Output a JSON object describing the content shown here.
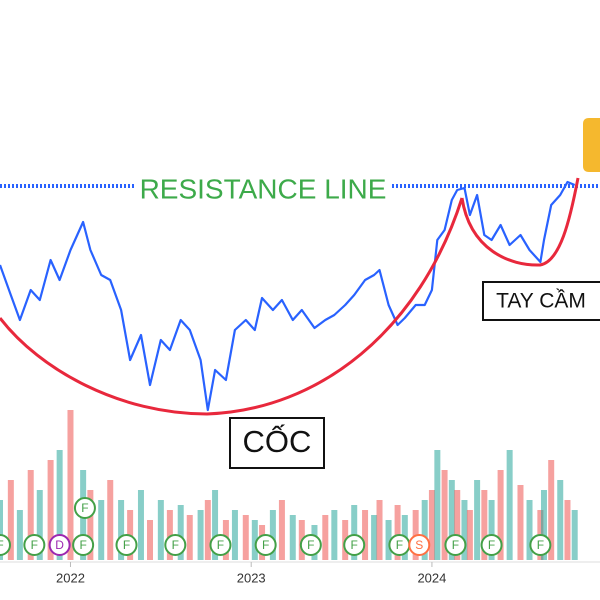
{
  "chart_data": {
    "type": "line",
    "x": [
      2021.61,
      2021.67,
      2021.72,
      2021.78,
      2021.83,
      2021.89,
      2021.94,
      2022.0,
      2022.07,
      2022.11,
      2022.17,
      2022.22,
      2022.28,
      2022.33,
      2022.39,
      2022.44,
      2022.5,
      2022.55,
      2022.61,
      2022.66,
      2022.72,
      2022.76,
      2022.8,
      2022.86,
      2022.91,
      2022.97,
      2023.02,
      2023.06,
      2023.12,
      2023.17,
      2023.23,
      2023.28,
      2023.35,
      2023.41,
      2023.46,
      2023.52,
      2023.57,
      2023.63,
      2023.68,
      2023.71,
      2023.76,
      2023.81,
      2023.85,
      2023.91,
      2023.96,
      2024.0,
      2024.03,
      2024.07,
      2024.11,
      2024.14,
      2024.18,
      2024.21,
      2024.25,
      2024.29,
      2024.33,
      2024.38,
      2024.43,
      2024.49,
      2024.54,
      2024.6,
      2024.62,
      2024.66,
      2024.71,
      2024.75,
      2024.79
    ],
    "series": [
      {
        "color": "#2962ff",
        "values": [
          335,
          305,
          280,
          310,
          300,
          340,
          320,
          350,
          378,
          350,
          325,
          320,
          290,
          240,
          265,
          215,
          260,
          250,
          280,
          270,
          240,
          190,
          230,
          220,
          270,
          280,
          270,
          302,
          290,
          300,
          280,
          290,
          272,
          280,
          285,
          295,
          305,
          320,
          325,
          330,
          295,
          275,
          282,
          295,
          295,
          310,
          360,
          370,
          400,
          410,
          412,
          385,
          405,
          365,
          360,
          375,
          355,
          365,
          350,
          338,
          360,
          395,
          405,
          418,
          415
        ]
      }
    ],
    "xlim": [
      2021.61,
      2024.93
    ],
    "ylim": [
      0,
      600
    ],
    "xticks": [
      2022,
      2023,
      2024
    ],
    "volume": {
      "ylim": [
        0,
        200
      ],
      "colors": [
        "#26a69a",
        "#ef5350"
      ],
      "values": [
        60,
        80,
        50,
        90,
        70,
        100,
        110,
        150,
        90,
        70,
        60,
        80,
        60,
        50,
        70,
        40,
        60,
        50,
        55,
        45,
        50,
        60,
        70,
        40,
        50,
        45,
        40,
        35,
        50,
        60,
        45,
        40,
        35,
        45,
        50,
        40,
        55,
        50,
        45,
        60,
        40,
        55,
        45,
        50,
        60,
        70,
        110,
        90,
        80,
        70,
        60,
        50,
        80,
        70,
        60,
        90,
        110,
        75,
        60,
        50,
        70,
        100,
        80,
        60,
        50
      ]
    },
    "resistance": {
      "value": 414,
      "label": "RESISTANCE LINE"
    },
    "annotations": [
      "CỐC",
      "TAY CẦM"
    ],
    "events": [
      {
        "x": 2021.61,
        "label": "F"
      },
      {
        "x": 2021.8,
        "label": "F"
      },
      {
        "x": 2021.94,
        "label": "D"
      },
      {
        "x": 2022.07,
        "label": "F"
      },
      {
        "x": 2022.08,
        "label": "F"
      },
      {
        "x": 2022.31,
        "label": "F"
      },
      {
        "x": 2022.58,
        "label": "F"
      },
      {
        "x": 2022.83,
        "label": "F"
      },
      {
        "x": 2023.08,
        "label": "F"
      },
      {
        "x": 2023.33,
        "label": "F"
      },
      {
        "x": 2023.57,
        "label": "F"
      },
      {
        "x": 2023.82,
        "label": "F"
      },
      {
        "x": 2023.93,
        "label": "S"
      },
      {
        "x": 2024.13,
        "label": "F"
      },
      {
        "x": 2024.33,
        "label": "F"
      },
      {
        "x": 2024.6,
        "label": "F"
      }
    ],
    "badge_colors": {
      "F": "#43a047",
      "D": "#9c27b0",
      "S": "#ff7043"
    }
  }
}
